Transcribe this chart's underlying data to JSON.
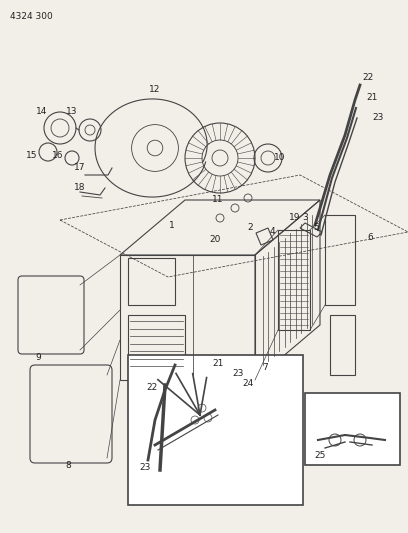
{
  "page_id": "4324 300",
  "bg_color": "#f2efe9",
  "line_color": "#444444",
  "text_color": "#222222",
  "figsize": [
    4.08,
    5.33
  ],
  "dpi": 100
}
